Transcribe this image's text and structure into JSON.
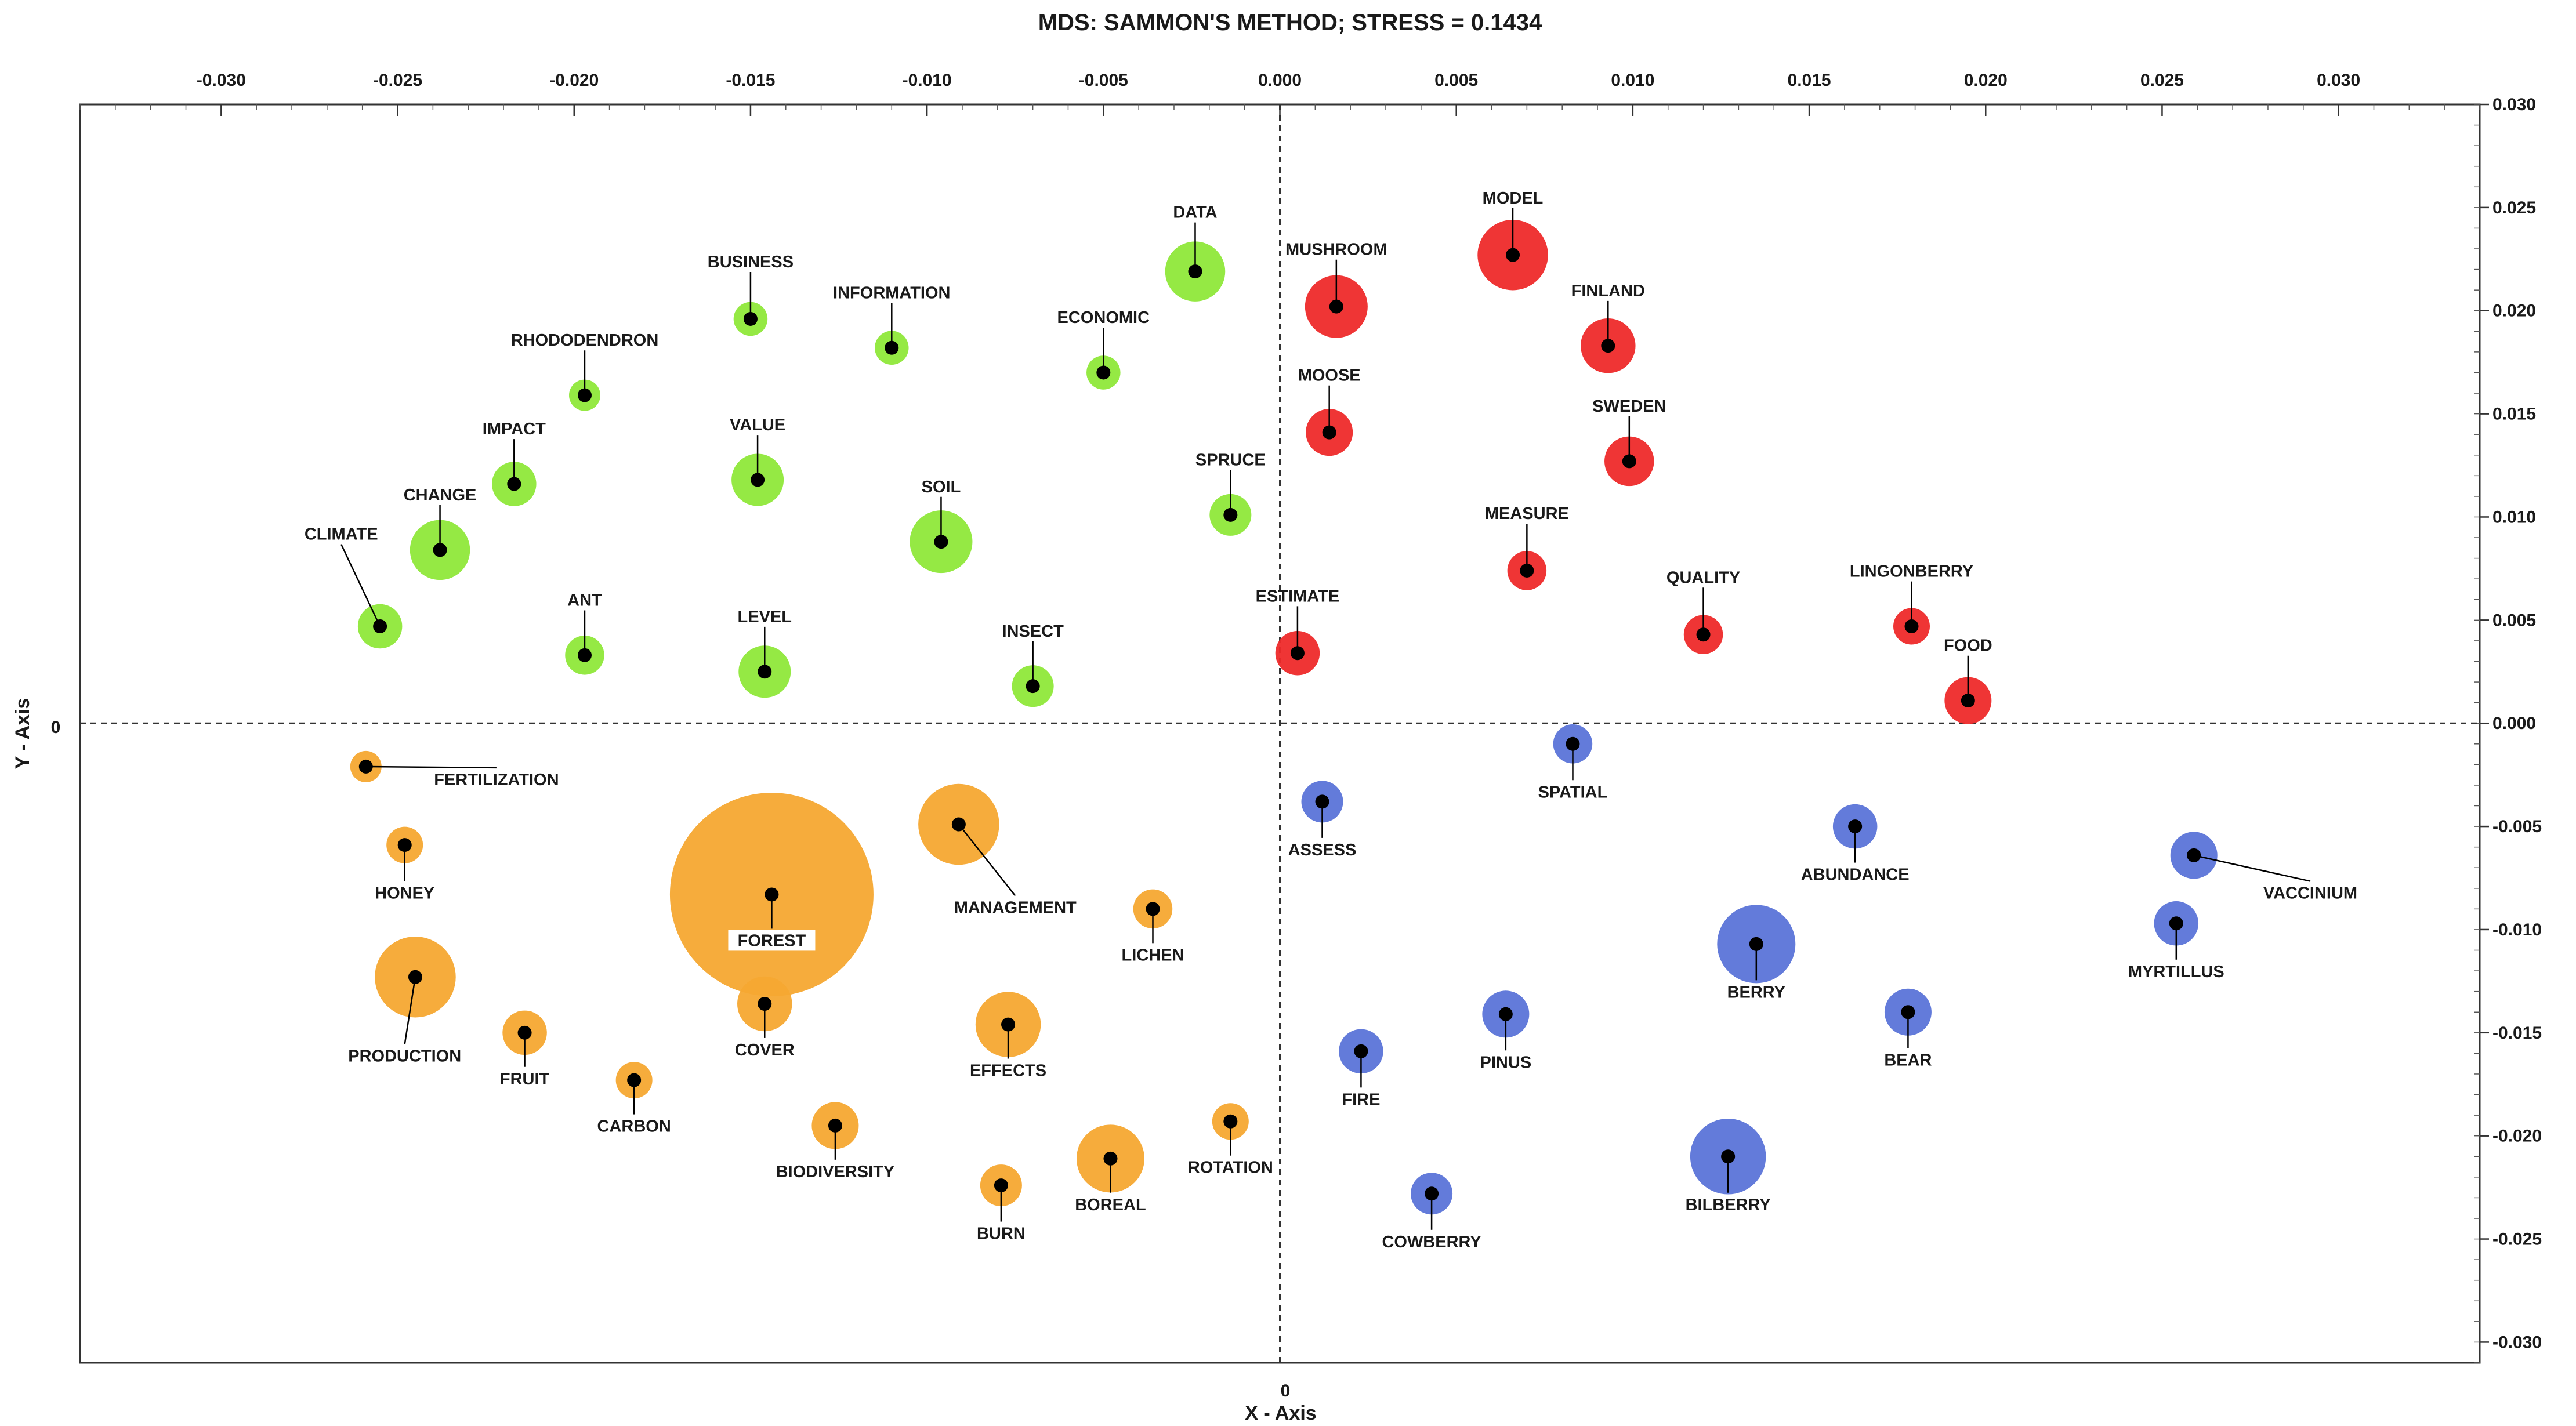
{
  "chart_data": {
    "type": "scatter",
    "title": "MDS: SAMMON'S METHOD; STRESS = 0.1434",
    "xlabel": "X - Axis",
    "ylabel": "Y - Axis",
    "xlim": [
      -0.034,
      0.034
    ],
    "ylim": [
      -0.031,
      0.03
    ],
    "x_ticks": [
      -0.03,
      -0.025,
      -0.02,
      -0.015,
      -0.01,
      -0.005,
      0.0,
      0.005,
      0.01,
      0.015,
      0.02,
      0.025,
      0.03
    ],
    "x_tick_labels": [
      "-0.030",
      "-0.025",
      "-0.020",
      "-0.015",
      "-0.010",
      "-0.005",
      "0.000",
      "0.005",
      "0.010",
      "0.015",
      "0.020",
      "0.025",
      "0.030"
    ],
    "y_ticks": [
      0.03,
      0.025,
      0.02,
      0.015,
      0.01,
      0.005,
      0.0,
      -0.005,
      -0.01,
      -0.015,
      -0.02,
      -0.025,
      -0.03
    ],
    "y_tick_labels": [
      "0.030",
      "0.025",
      "0.020",
      "0.015",
      "0.010",
      "0.005",
      "0.000",
      "-0.005",
      "-0.010",
      "-0.015",
      "-0.020",
      "-0.025",
      "-0.030"
    ],
    "origin_x_label": "0",
    "origin_y_label": "0",
    "colors": {
      "green": "#8fe83a",
      "red": "#ee2a2a",
      "blue": "#5b74d8",
      "orange": "#f5a832",
      "marker": "#000000"
    },
    "series": [
      {
        "name": "green",
        "points": [
          {
            "label": "DATA",
            "x": -0.0024,
            "y": 0.0219,
            "r": 2.3,
            "label_at": [
              -0.0024,
              0.0245
            ]
          },
          {
            "label": "BUSINESS",
            "x": -0.015,
            "y": 0.0196,
            "r": 1.3,
            "label_at": [
              -0.015,
              0.0221
            ]
          },
          {
            "label": "INFORMATION",
            "x": -0.011,
            "y": 0.0182,
            "r": 1.3,
            "label_at": [
              -0.011,
              0.0206
            ]
          },
          {
            "label": "ECONOMIC",
            "x": -0.005,
            "y": 0.017,
            "r": 1.3,
            "label_at": [
              -0.005,
              0.0194
            ]
          },
          {
            "label": "RHODODENDRON",
            "x": -0.0197,
            "y": 0.0159,
            "r": 1.2,
            "label_at": [
              -0.0197,
              0.0183
            ]
          },
          {
            "label": "IMPACT",
            "x": -0.0217,
            "y": 0.0116,
            "r": 1.7,
            "label_at": [
              -0.0217,
              0.014
            ]
          },
          {
            "label": "VALUE",
            "x": -0.0148,
            "y": 0.0118,
            "r": 2.0,
            "label_at": [
              -0.0148,
              0.0142
            ]
          },
          {
            "label": "SOIL",
            "x": -0.0096,
            "y": 0.0088,
            "r": 2.4,
            "label_at": [
              -0.0096,
              0.0112
            ]
          },
          {
            "label": "SPRUCE",
            "x": -0.0014,
            "y": 0.0101,
            "r": 1.6,
            "label_at": [
              -0.0014,
              0.0125
            ]
          },
          {
            "label": "CHANGE",
            "x": -0.0238,
            "y": 0.0084,
            "r": 2.3,
            "label_at": [
              -0.0238,
              0.0108
            ]
          },
          {
            "label": "CLIMATE",
            "x": -0.0255,
            "y": 0.0047,
            "r": 1.7,
            "label_at": [
              -0.0266,
              0.0089
            ]
          },
          {
            "label": "ANT",
            "x": -0.0197,
            "y": 0.0033,
            "r": 1.5,
            "label_at": [
              -0.0197,
              0.0057
            ]
          },
          {
            "label": "LEVEL",
            "x": -0.0146,
            "y": 0.0025,
            "r": 2.0,
            "label_at": [
              -0.0146,
              0.0049
            ]
          },
          {
            "label": "INSECT",
            "x": -0.007,
            "y": 0.0018,
            "r": 1.6,
            "label_at": [
              -0.007,
              0.0042
            ]
          }
        ]
      },
      {
        "name": "red",
        "points": [
          {
            "label": "MODEL",
            "x": 0.0066,
            "y": 0.0227,
            "r": 2.7,
            "label_at": [
              0.0066,
              0.0252
            ]
          },
          {
            "label": "MUSHROOM",
            "x": 0.0016,
            "y": 0.0202,
            "r": 2.4,
            "label_at": [
              0.0016,
              0.0227
            ]
          },
          {
            "label": "FINLAND",
            "x": 0.0093,
            "y": 0.0183,
            "r": 2.1,
            "label_at": [
              0.0093,
              0.0207
            ]
          },
          {
            "label": "MOOSE",
            "x": 0.0014,
            "y": 0.0141,
            "r": 1.8,
            "label_at": [
              0.0014,
              0.0166
            ]
          },
          {
            "label": "SWEDEN",
            "x": 0.0099,
            "y": 0.0127,
            "r": 1.9,
            "label_at": [
              0.0099,
              0.0151
            ]
          },
          {
            "label": "MEASURE",
            "x": 0.007,
            "y": 0.0074,
            "r": 1.5,
            "label_at": [
              0.007,
              0.0099
            ]
          },
          {
            "label": "QUALITY",
            "x": 0.012,
            "y": 0.0043,
            "r": 1.5,
            "label_at": [
              0.012,
              0.0068
            ]
          },
          {
            "label": "LINGONBERRY",
            "x": 0.0179,
            "y": 0.0047,
            "r": 1.4,
            "label_at": [
              0.0179,
              0.0071
            ]
          },
          {
            "label": "ESTIMATE",
            "x": 0.0005,
            "y": 0.0034,
            "r": 1.7,
            "label_at": [
              0.0005,
              0.0059
            ]
          },
          {
            "label": "FOOD",
            "x": 0.0195,
            "y": 0.0011,
            "r": 1.8,
            "label_at": [
              0.0195,
              0.0035
            ]
          }
        ]
      },
      {
        "name": "blue",
        "points": [
          {
            "label": "SPATIAL",
            "x": 0.0083,
            "y": -0.001,
            "r": 1.5,
            "label_at": [
              0.0083,
              -0.0036
            ]
          },
          {
            "label": "ASSESS",
            "x": 0.0012,
            "y": -0.0038,
            "r": 1.6,
            "label_at": [
              0.0012,
              -0.0064
            ]
          },
          {
            "label": "ABUNDANCE",
            "x": 0.0163,
            "y": -0.005,
            "r": 1.7,
            "label_at": [
              0.0163,
              -0.0076
            ]
          },
          {
            "label": "VACCINIUM",
            "x": 0.0259,
            "y": -0.0064,
            "r": 1.8,
            "label_at": [
              0.0292,
              -0.0085
            ]
          },
          {
            "label": "MYRTILLUS",
            "x": 0.0254,
            "y": -0.0097,
            "r": 1.7,
            "label_at": [
              0.0254,
              -0.0123
            ]
          },
          {
            "label": "BERRY",
            "x": 0.0135,
            "y": -0.0107,
            "r": 3.0,
            "label_at": [
              0.0135,
              -0.0133
            ]
          },
          {
            "label": "BEAR",
            "x": 0.0178,
            "y": -0.014,
            "r": 1.8,
            "label_at": [
              0.0178,
              -0.0166
            ]
          },
          {
            "label": "PINUS",
            "x": 0.0064,
            "y": -0.0141,
            "r": 1.8,
            "label_at": [
              0.0064,
              -0.0167
            ]
          },
          {
            "label": "FIRE",
            "x": 0.0023,
            "y": -0.0159,
            "r": 1.7,
            "label_at": [
              0.0023,
              -0.0185
            ]
          },
          {
            "label": "BILBERRY",
            "x": 0.0127,
            "y": -0.021,
            "r": 2.9,
            "label_at": [
              0.0127,
              -0.0236
            ]
          },
          {
            "label": "COWBERRY",
            "x": 0.0043,
            "y": -0.0228,
            "r": 1.6,
            "label_at": [
              0.0043,
              -0.0254
            ]
          }
        ]
      },
      {
        "name": "orange",
        "points": [
          {
            "label": "FERTILIZATION",
            "x": -0.0259,
            "y": -0.0021,
            "r": 1.2,
            "label_at": [
              -0.0222,
              -0.003
            ]
          },
          {
            "label": "HONEY",
            "x": -0.0248,
            "y": -0.0059,
            "r": 1.4,
            "label_at": [
              -0.0248,
              -0.0085
            ]
          },
          {
            "label": "FOREST",
            "x": -0.0144,
            "y": -0.0083,
            "r": 7.8,
            "label_at": [
              -0.0144,
              -0.0108
            ]
          },
          {
            "label": "MANAGEMENT",
            "x": -0.0091,
            "y": -0.0049,
            "r": 3.1,
            "label_at": [
              -0.0075,
              -0.0092
            ]
          },
          {
            "label": "LICHEN",
            "x": -0.0036,
            "y": -0.009,
            "r": 1.5,
            "label_at": [
              -0.0036,
              -0.0115
            ]
          },
          {
            "label": "PRODUCTION",
            "x": -0.0245,
            "y": -0.0123,
            "r": 3.1,
            "label_at": [
              -0.0248,
              -0.0164
            ]
          },
          {
            "label": "COVER",
            "x": -0.0146,
            "y": -0.0136,
            "r": 2.1,
            "label_at": [
              -0.0146,
              -0.0161
            ]
          },
          {
            "label": "FRUIT",
            "x": -0.0214,
            "y": -0.015,
            "r": 1.7,
            "label_at": [
              -0.0214,
              -0.0175
            ]
          },
          {
            "label": "EFFECTS",
            "x": -0.0077,
            "y": -0.0146,
            "r": 2.5,
            "label_at": [
              -0.0077,
              -0.0171
            ]
          },
          {
            "label": "CARBON",
            "x": -0.0183,
            "y": -0.0173,
            "r": 1.4,
            "label_at": [
              -0.0183,
              -0.0198
            ]
          },
          {
            "label": "BIODIVERSITY",
            "x": -0.0126,
            "y": -0.0195,
            "r": 1.8,
            "label_at": [
              -0.0126,
              -0.022
            ]
          },
          {
            "label": "ROTATION",
            "x": -0.0014,
            "y": -0.0193,
            "r": 1.4,
            "label_at": [
              -0.0014,
              -0.0218
            ]
          },
          {
            "label": "BOREAL",
            "x": -0.0048,
            "y": -0.0211,
            "r": 2.6,
            "label_at": [
              -0.0048,
              -0.0236
            ]
          },
          {
            "label": "BURN",
            "x": -0.0079,
            "y": -0.0224,
            "r": 1.6,
            "label_at": [
              -0.0079,
              -0.025
            ]
          }
        ]
      }
    ]
  }
}
